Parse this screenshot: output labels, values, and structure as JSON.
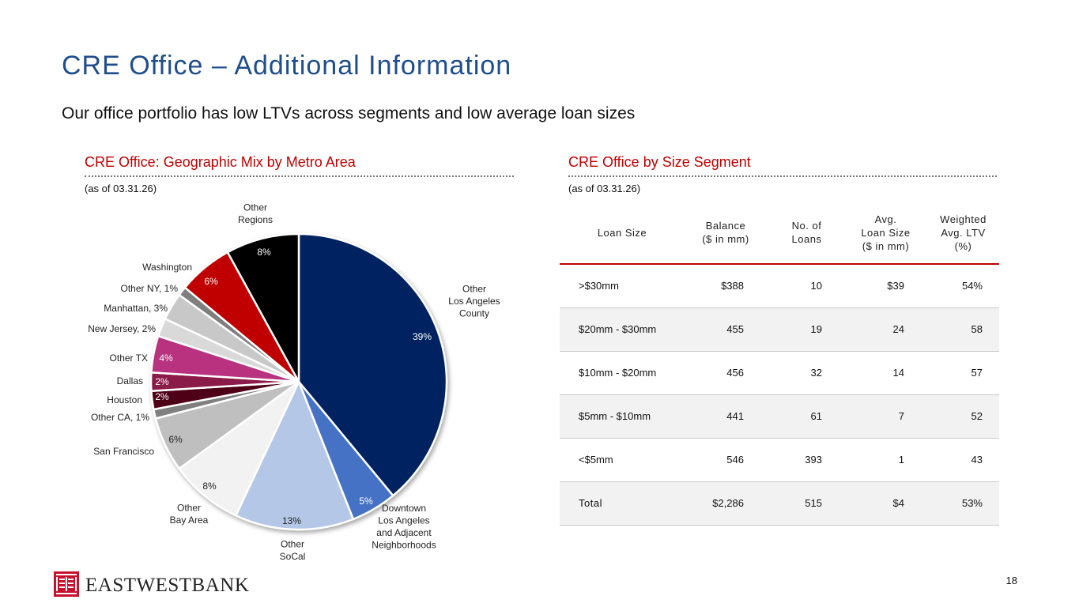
{
  "page": {
    "title": "CRE Office – Additional Information",
    "subtitle": "Our office portfolio has low LTVs across segments and low average loan sizes",
    "page_number": "18",
    "brand": "EASTWESTBANK"
  },
  "left_panel": {
    "title": "CRE Office: Geographic Mix by Metro Area",
    "as_of": "(as of 03.31.26)"
  },
  "right_panel": {
    "title": "CRE Office by Size Segment",
    "as_of": "(as of 03.31.26)"
  },
  "chart_data": {
    "type": "pie",
    "title": "CRE Office: Geographic Mix by Metro Area",
    "start_angle_deg": 0,
    "direction": "clockwise",
    "slices": [
      {
        "label": "Other\nLos Angeles\nCounty",
        "value": 39,
        "pct_label": "39%",
        "color": "#002060",
        "text_color": "#ffffff"
      },
      {
        "label": "Downtown\nLos Angeles\nand Adjacent\nNeighborhoods",
        "value": 5,
        "pct_label": "5%",
        "color": "#4472c4",
        "text_color": "#ffffff"
      },
      {
        "label": "Other\nSoCal",
        "value": 13,
        "pct_label": "13%",
        "color": "#b4c7e7",
        "text_color": "#222222"
      },
      {
        "label": "Other\nBay Area",
        "value": 8,
        "pct_label": "8%",
        "color": "#f2f2f2",
        "text_color": "#222222"
      },
      {
        "label": "San Francisco",
        "value": 6,
        "pct_label": "6%",
        "color": "#bfbfbf",
        "text_color": "#222222"
      },
      {
        "label": "Other CA, 1%",
        "value": 1,
        "pct_label": "",
        "color": "#7f7f7f",
        "text_color": "#222222"
      },
      {
        "label": "Houston",
        "value": 2,
        "pct_label": "2%",
        "color": "#4d0019",
        "text_color": "#ffffff"
      },
      {
        "label": "Dallas",
        "value": 2,
        "pct_label": "2%",
        "color": "#8b1a4a",
        "text_color": "#ffffff"
      },
      {
        "label": "Other TX",
        "value": 4,
        "pct_label": "4%",
        "color": "#b83080",
        "text_color": "#ffffff"
      },
      {
        "label": "New Jersey, 2%",
        "value": 2,
        "pct_label": "",
        "color": "#d9d9d9",
        "text_color": "#222222"
      },
      {
        "label": "Manhattan, 3%",
        "value": 3,
        "pct_label": "",
        "color": "#c8c8c8",
        "text_color": "#222222"
      },
      {
        "label": "Other NY, 1%",
        "value": 1,
        "pct_label": "",
        "color": "#7f7f7f",
        "text_color": "#222222"
      },
      {
        "label": "Washington",
        "value": 6,
        "pct_label": "6%",
        "color": "#c00000",
        "text_color": "#ffffff"
      },
      {
        "label": "Other\nRegions",
        "value": 8,
        "pct_label": "8%",
        "color": "#000000",
        "text_color": "#ffffff"
      }
    ]
  },
  "size_table": {
    "headers": [
      "Loan Size",
      "Balance\n($ in mm)",
      "No. of\nLoans",
      "Avg.\nLoan Size\n($ in mm)",
      "Weighted\nAvg. LTV\n(%)"
    ],
    "rows": [
      [
        ">$30mm",
        "$388",
        "10",
        "$39",
        "54%"
      ],
      [
        "$20mm - $30mm",
        "455",
        "19",
        "24",
        "58"
      ],
      [
        "$10mm - $20mm",
        "456",
        "32",
        "14",
        "57"
      ],
      [
        "$5mm - $10mm",
        "441",
        "61",
        "7",
        "52"
      ],
      [
        "<$5mm",
        "546",
        "393",
        "1",
        "43"
      ],
      [
        "Total",
        "$2,286",
        "515",
        "$4",
        "53%"
      ]
    ]
  },
  "colors": {
    "title_blue": "#1f4e8c",
    "accent_red": "#c00000",
    "row_alt": "#f2f2f2",
    "logo_red": "#c8102e"
  }
}
